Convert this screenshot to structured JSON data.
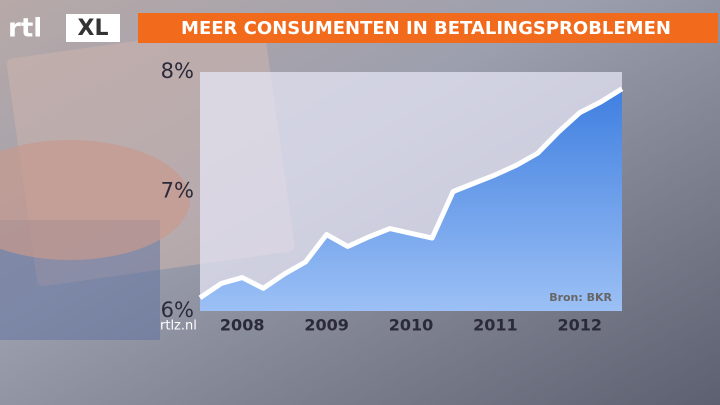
{
  "chart_data": {
    "type": "area",
    "title": "MEER CONSUMENTEN IN BETALINGSPROBLEMEN",
    "source": "Bron: BKR",
    "website": "rtlz.nl",
    "logo": [
      "rtl",
      "XL"
    ],
    "x": [
      2007.5,
      2007.75,
      2008,
      2008.25,
      2008.5,
      2008.75,
      2009,
      2009.25,
      2009.5,
      2009.75,
      2010,
      2010.25,
      2010.5,
      2010.75,
      2011,
      2011.25,
      2011.5,
      2011.75,
      2012,
      2012.25,
      2012.5
    ],
    "values": [
      6.11,
      6.23,
      6.28,
      6.19,
      6.31,
      6.41,
      6.64,
      6.54,
      6.62,
      6.69,
      6.65,
      6.61,
      7.0,
      7.07,
      7.14,
      7.22,
      7.32,
      7.5,
      7.66,
      7.75,
      7.86
    ],
    "color": "#3f7fe0",
    "line_color": "#ffffff",
    "xlim": [
      2007.5,
      2012.5
    ],
    "xticks": [
      2008,
      2009,
      2010,
      2011,
      2012
    ],
    "ylim": [
      6,
      8
    ],
    "yticks": [
      {
        "value": 6,
        "label": "6%"
      },
      {
        "value": 7,
        "label": "7%"
      },
      {
        "value": 8,
        "label": "8%"
      }
    ]
  }
}
